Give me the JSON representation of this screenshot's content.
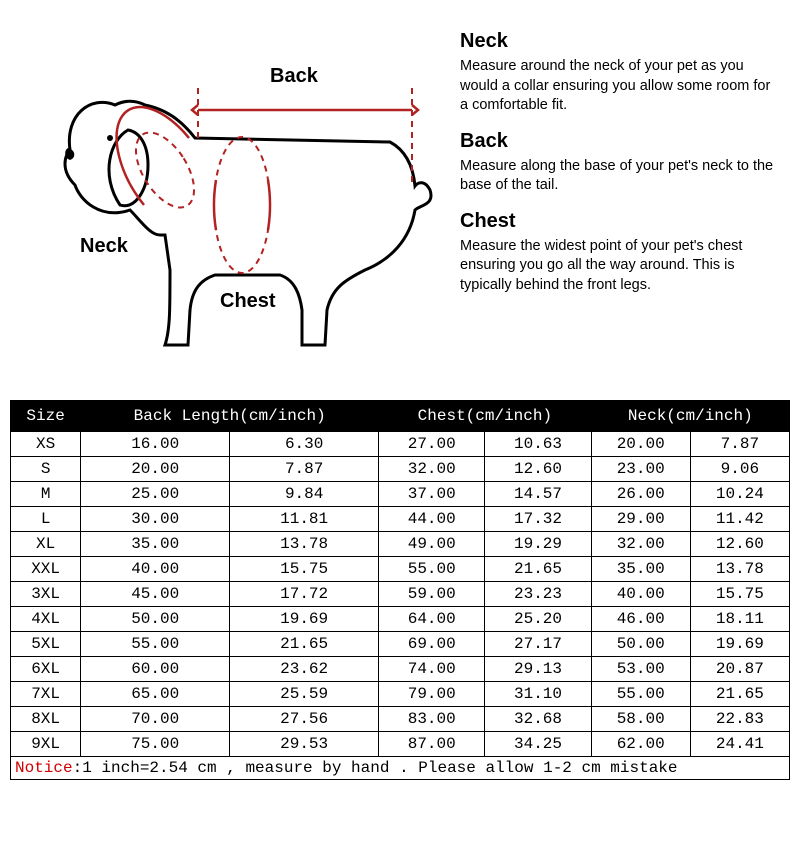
{
  "diagram": {
    "labels": {
      "back": "Back",
      "neck": "Neck",
      "chest": "Chest"
    },
    "outline_color": "#000000",
    "measure_color": "#b22222",
    "measure_dash": "6,5",
    "label_fontsize": 20,
    "label_fontweight": "bold"
  },
  "instructions": {
    "neck": {
      "title": "Neck",
      "text": "Measure around the neck of your pet as you would a collar ensuring you allow some room for a comfortable fit."
    },
    "back": {
      "title": "Back",
      "text": "Measure along the base of your pet's neck to the base of the tail."
    },
    "chest": {
      "title": "Chest",
      "text": "Measure the widest point of your pet's chest ensuring you go all the way around. This is typically behind the front legs."
    },
    "title_fontsize": 20,
    "text_fontsize": 14.5,
    "text_color": "#000000"
  },
  "table": {
    "header_bg": "#000000",
    "header_fg": "#ffffff",
    "border_color": "#000000",
    "font": "Courier New",
    "columns": [
      "Size",
      "Back Length(cm/inch)",
      "Chest(cm/inch)",
      "Neck(cm/inch)"
    ],
    "header_colspans": [
      1,
      2,
      2,
      2
    ],
    "rows": [
      {
        "size": "XS",
        "back_cm": "16.00",
        "back_in": "6.30",
        "chest_cm": "27.00",
        "chest_in": "10.63",
        "neck_cm": "20.00",
        "neck_in": "7.87"
      },
      {
        "size": "S",
        "back_cm": "20.00",
        "back_in": "7.87",
        "chest_cm": "32.00",
        "chest_in": "12.60",
        "neck_cm": "23.00",
        "neck_in": "9.06"
      },
      {
        "size": "M",
        "back_cm": "25.00",
        "back_in": "9.84",
        "chest_cm": "37.00",
        "chest_in": "14.57",
        "neck_cm": "26.00",
        "neck_in": "10.24"
      },
      {
        "size": "L",
        "back_cm": "30.00",
        "back_in": "11.81",
        "chest_cm": "44.00",
        "chest_in": "17.32",
        "neck_cm": "29.00",
        "neck_in": "11.42"
      },
      {
        "size": "XL",
        "back_cm": "35.00",
        "back_in": "13.78",
        "chest_cm": "49.00",
        "chest_in": "19.29",
        "neck_cm": "32.00",
        "neck_in": "12.60"
      },
      {
        "size": "XXL",
        "back_cm": "40.00",
        "back_in": "15.75",
        "chest_cm": "55.00",
        "chest_in": "21.65",
        "neck_cm": "35.00",
        "neck_in": "13.78"
      },
      {
        "size": "3XL",
        "back_cm": "45.00",
        "back_in": "17.72",
        "chest_cm": "59.00",
        "chest_in": "23.23",
        "neck_cm": "40.00",
        "neck_in": "15.75"
      },
      {
        "size": "4XL",
        "back_cm": "50.00",
        "back_in": "19.69",
        "chest_cm": "64.00",
        "chest_in": "25.20",
        "neck_cm": "46.00",
        "neck_in": "18.11"
      },
      {
        "size": "5XL",
        "back_cm": "55.00",
        "back_in": "21.65",
        "chest_cm": "69.00",
        "chest_in": "27.17",
        "neck_cm": "50.00",
        "neck_in": "19.69"
      },
      {
        "size": "6XL",
        "back_cm": "60.00",
        "back_in": "23.62",
        "chest_cm": "74.00",
        "chest_in": "29.13",
        "neck_cm": "53.00",
        "neck_in": "20.87"
      },
      {
        "size": "7XL",
        "back_cm": "65.00",
        "back_in": "25.59",
        "chest_cm": "79.00",
        "chest_in": "31.10",
        "neck_cm": "55.00",
        "neck_in": "21.65"
      },
      {
        "size": "8XL",
        "back_cm": "70.00",
        "back_in": "27.56",
        "chest_cm": "83.00",
        "chest_in": "32.68",
        "neck_cm": "58.00",
        "neck_in": "22.83"
      },
      {
        "size": "9XL",
        "back_cm": "75.00",
        "back_in": "29.53",
        "chest_cm": "87.00",
        "chest_in": "34.25",
        "neck_cm": "62.00",
        "neck_in": "24.41"
      }
    ]
  },
  "notice": {
    "label": "Notice",
    "label_color": "#d00000",
    "text": ":1 inch=2.54 cm , measure by hand . Please allow 1-2 cm mistake"
  }
}
